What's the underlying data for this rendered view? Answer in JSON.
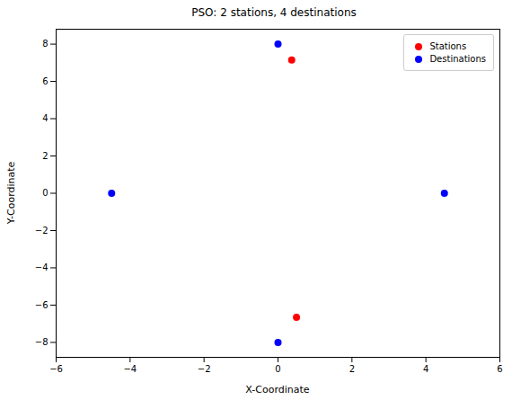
{
  "chart_data": {
    "type": "scatter",
    "title": "PSO: 2 stations, 4 destinations",
    "x_label": "X-Coordinate",
    "y_label": "Y-Coordinate",
    "series": [
      {
        "name": "Stations",
        "color": "#ff0000",
        "marker": "circle",
        "x": [
          0.37,
          0.5
        ],
        "values": [
          7.15,
          -6.65
        ]
      },
      {
        "name": "Destinations",
        "color": "#0000ff",
        "marker": "circle",
        "x": [
          0,
          -4.5,
          4.5,
          0
        ],
        "values": [
          8,
          0,
          0,
          -8
        ]
      }
    ],
    "xlim": [
      -6,
      6
    ],
    "xticks": [
      -6,
      -4,
      -2,
      0,
      2,
      4,
      6
    ],
    "ylim": [
      -8.8,
      8.8
    ],
    "yticks": [
      -8,
      -6,
      -4,
      -2,
      0,
      2,
      4,
      6,
      8
    ],
    "grid": false,
    "legend": "upper right"
  }
}
